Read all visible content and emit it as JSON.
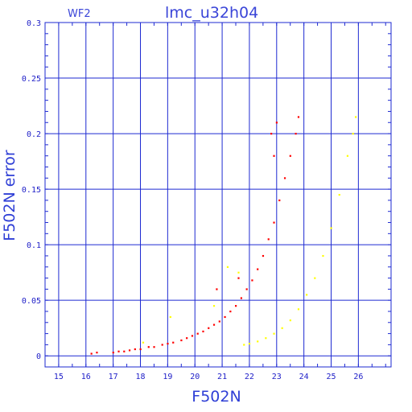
{
  "chart_data": {
    "type": "scatter",
    "title": "lmc_u32h04",
    "subtitle": "WF2",
    "xlabel": "F502N",
    "ylabel": "F502N error",
    "xlim": [
      14.5,
      27.2
    ],
    "ylim": [
      -0.01,
      0.3
    ],
    "xticks": [
      15,
      16,
      17,
      18,
      19,
      20,
      21,
      22,
      23,
      24,
      25,
      26
    ],
    "yticks": [
      0,
      0.05,
      0.1,
      0.15,
      0.2,
      0.25,
      0.3
    ],
    "ytick_labels": [
      "0",
      "0.05",
      "0.1",
      "0.15",
      "0.2",
      "0.25",
      "0.3"
    ],
    "grid": true,
    "series": [
      {
        "color": "#ff0000",
        "points": [
          [
            16.2,
            0.002
          ],
          [
            16.4,
            0.003
          ],
          [
            17.0,
            0.003
          ],
          [
            17.2,
            0.004
          ],
          [
            17.4,
            0.004
          ],
          [
            17.6,
            0.005
          ],
          [
            17.8,
            0.006
          ],
          [
            18.0,
            0.006
          ],
          [
            18.3,
            0.008
          ],
          [
            18.5,
            0.008
          ],
          [
            18.8,
            0.01
          ],
          [
            19.0,
            0.011
          ],
          [
            19.2,
            0.012
          ],
          [
            19.5,
            0.014
          ],
          [
            19.7,
            0.016
          ],
          [
            19.9,
            0.018
          ],
          [
            20.1,
            0.02
          ],
          [
            20.3,
            0.022
          ],
          [
            20.5,
            0.025
          ],
          [
            20.7,
            0.028
          ],
          [
            20.9,
            0.031
          ],
          [
            21.1,
            0.035
          ],
          [
            21.3,
            0.04
          ],
          [
            21.5,
            0.045
          ],
          [
            21.7,
            0.052
          ],
          [
            21.9,
            0.06
          ],
          [
            22.1,
            0.068
          ],
          [
            22.3,
            0.078
          ],
          [
            22.5,
            0.09
          ],
          [
            22.7,
            0.105
          ],
          [
            22.9,
            0.12
          ],
          [
            23.1,
            0.14
          ],
          [
            23.3,
            0.16
          ],
          [
            23.5,
            0.18
          ],
          [
            23.7,
            0.2
          ],
          [
            23.8,
            0.215
          ],
          [
            20.8,
            0.06
          ],
          [
            21.6,
            0.07
          ],
          [
            22.8,
            0.2
          ],
          [
            22.9,
            0.18
          ],
          [
            23.0,
            0.21
          ]
        ]
      },
      {
        "color": "#ffff00",
        "points": [
          [
            21.8,
            0.01
          ],
          [
            22.0,
            0.011
          ],
          [
            22.3,
            0.013
          ],
          [
            22.6,
            0.016
          ],
          [
            22.9,
            0.02
          ],
          [
            23.2,
            0.025
          ],
          [
            23.5,
            0.032
          ],
          [
            23.8,
            0.042
          ],
          [
            24.1,
            0.055
          ],
          [
            24.4,
            0.07
          ],
          [
            24.7,
            0.09
          ],
          [
            25.0,
            0.115
          ],
          [
            25.3,
            0.145
          ],
          [
            25.6,
            0.18
          ],
          [
            25.8,
            0.2
          ],
          [
            25.9,
            0.215
          ],
          [
            21.2,
            0.08
          ],
          [
            21.6,
            0.075
          ],
          [
            18.1,
            0.012
          ],
          [
            19.1,
            0.035
          ],
          [
            20.7,
            0.045
          ]
        ]
      }
    ]
  }
}
